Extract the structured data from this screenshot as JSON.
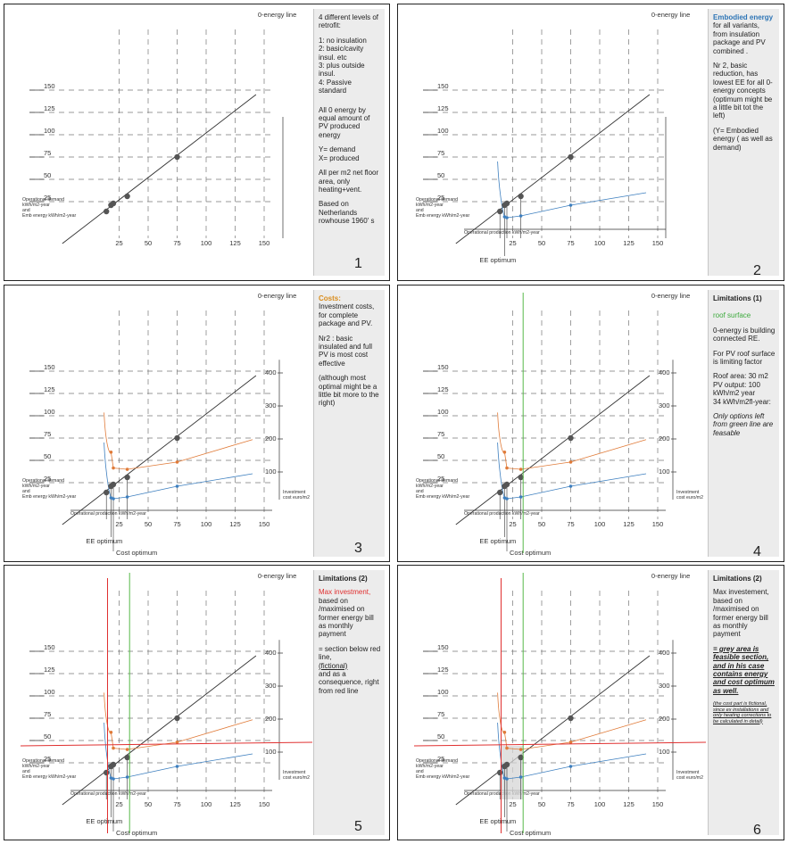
{
  "labels": {
    "zero_energy_line": "0-energy line",
    "y_axis_l1": "Operational demand",
    "y_axis_l2": "kWh/m2-year",
    "y_axis_l3": "and",
    "y_axis_l4": "Emb energy kWh/m2-year",
    "x_axis": "Operational production kWh/m2-year",
    "invest_l1": "Investment",
    "invest_l2": "cost  euro/m2",
    "ee_optimum": "EE optimum",
    "cost_optimum": "Cost optimum",
    "y_ticks": [
      "150",
      "125",
      "100",
      "75",
      "50",
      "25"
    ],
    "x_ticks": [
      "25",
      "50",
      "75",
      "100",
      "125",
      "150"
    ],
    "invest_ticks": [
      "400",
      "300",
      "200",
      "100"
    ]
  },
  "chart_data": {
    "type": "line",
    "xlabel": "Operational production kWh/m2-year",
    "ylabel": "Operational demand kWh/m2-year and Emb energy kWh/m2-year",
    "y2label": "Investment cost euro/m2",
    "xlim": [
      0,
      160
    ],
    "ylim": [
      0,
      160
    ],
    "y2lim": [
      0,
      440
    ],
    "zero_energy_points": [
      [
        14,
        14
      ],
      [
        18,
        21
      ],
      [
        20,
        23
      ],
      [
        32,
        31
      ],
      [
        75,
        75
      ]
    ],
    "embodied_energy": [
      [
        14,
        14
      ],
      [
        18,
        8
      ],
      [
        20,
        7
      ],
      [
        32,
        9
      ],
      [
        75,
        21
      ],
      [
        140,
        35
      ]
    ],
    "investment_cost": [
      [
        14,
        130
      ],
      [
        18,
        160
      ],
      [
        20,
        112
      ],
      [
        32,
        108
      ],
      [
        75,
        130
      ],
      [
        140,
        198
      ]
    ],
    "roof_limit_x": 34,
    "max_investment_y": 44,
    "red_vertical_x": 15
  },
  "panels": [
    {
      "number": "1",
      "note": [
        "4 different levels of retrofit:",
        "1:  no insulation",
        "2: basic/cavity insul. etc",
        "3: plus outside insul.",
        "4: Passive standard",
        "All 0 energy by equal amount of PV produced energy",
        "Y= demand",
        "X= produced",
        "All per m2 net floor area, only heating+vent.",
        "Based on Netherlands rowhouse  1960' s"
      ]
    },
    {
      "number": "2",
      "heading": "Embodied energy",
      "note": [
        "for all variants, from insulation package and PV combined .",
        "Nr 2, basic reduction, has lowest EE for all 0-energy concepts (optimum might be a little bit tot the left)",
        "(Y= Embodied energy ( as well as demand)"
      ]
    },
    {
      "number": "3",
      "heading": "Costs:",
      "note": [
        "Investment costs, for complete package and PV.",
        "Nr2 : basic insulated and full PV is most cost effective",
        "(although most optimal might be a little bit more to the right)"
      ]
    },
    {
      "number": "4",
      "heading": "Limitations (1)",
      "sub": "roof surface",
      "note": [
        "0-energy is building connected RE.",
        "For PV roof surface is limiting factor",
        "Roof area: 30 m2",
        "PV output: 100 kWh/m2 year",
        "34 kWh/m2fl-year:",
        "Only options left from green line are feasable"
      ]
    },
    {
      "number": "5",
      "heading": "Limitations (2)",
      "sub": "Max investment,",
      "note": [
        "based on /maximised on former energy bill as monthly payment",
        "= section below red line,",
        "(fictional)",
        "and as a consequence, right from red line"
      ]
    },
    {
      "number": "6",
      "heading": "Limitations (2)",
      "note": [
        "Max investement, based on /maximised on former energy bill as monthly payment",
        "= grey area is feasible section, and in his case contains energy and cost optimum as well.",
        "(the cost part is fictional, since ex installations and only heating corrections to be calculated in detail)"
      ]
    }
  ]
}
